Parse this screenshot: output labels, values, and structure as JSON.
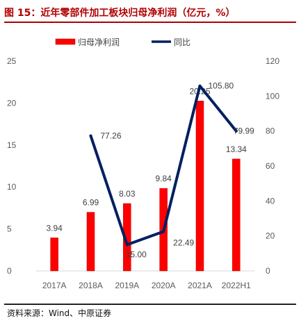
{
  "figure": {
    "title": "图 15：近年零部件加工板块归母净利润（亿元，%）",
    "source": "资料来源：Wind、中原证券"
  },
  "chart_data": {
    "type": "bar",
    "categories": [
      "2017A",
      "2018A",
      "2019A",
      "2020A",
      "2021A",
      "2022H1"
    ],
    "series": [
      {
        "name": "归母净利润",
        "type": "bar",
        "axis": "left",
        "color": "#ff0000",
        "values": [
          3.94,
          6.99,
          8.03,
          9.84,
          20.25,
          13.34
        ],
        "labels": [
          "3.94",
          "6.99",
          "8.03",
          "9.84",
          "20.25",
          "13.34"
        ]
      },
      {
        "name": "同比",
        "type": "line",
        "axis": "right",
        "color": "#002060",
        "values": [
          null,
          77.26,
          15.0,
          22.49,
          105.8,
          79.99
        ],
        "labels": [
          null,
          "77.26",
          "15.00",
          "22.49",
          "105.80",
          "79.99"
        ]
      }
    ],
    "left_axis": {
      "ylim": [
        0,
        25
      ],
      "ticks": [
        "0",
        "5",
        "10",
        "15",
        "20",
        "25"
      ]
    },
    "right_axis": {
      "ylim": [
        0,
        120
      ],
      "ticks": [
        "0",
        "20",
        "40",
        "60",
        "80",
        "100",
        "120"
      ]
    },
    "grid": false,
    "legend_position": "top-center"
  }
}
